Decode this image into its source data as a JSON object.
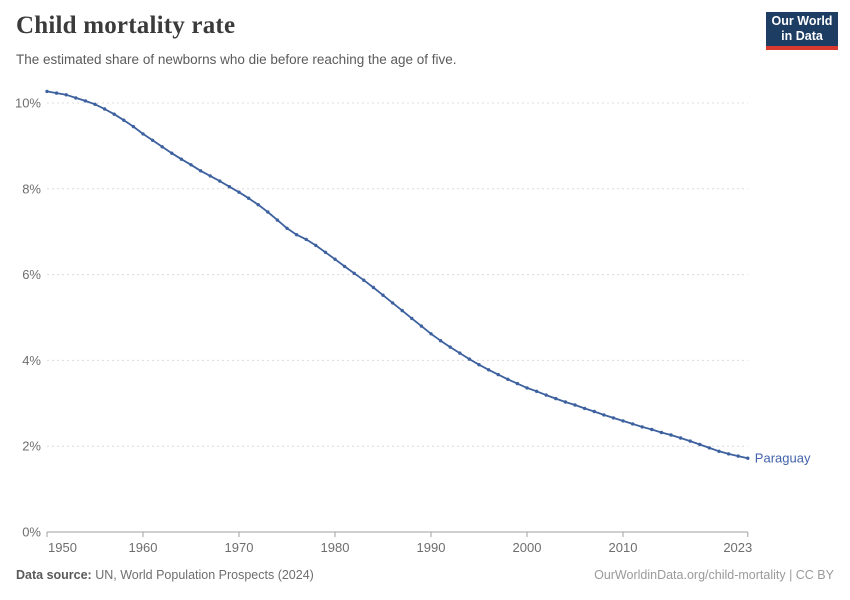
{
  "header": {
    "title": "Child mortality rate",
    "subtitle": "The estimated share of newborns who die before reaching the age of five.",
    "logo": {
      "line1": "Our World",
      "line2": "in Data"
    }
  },
  "chart_data": {
    "type": "line",
    "title": "Child mortality rate",
    "entity": "Paraguay",
    "xlabel": "",
    "ylabel": "",
    "xlim": [
      1950,
      2023
    ],
    "ylim": [
      0,
      10.8
    ],
    "grid": "horizontal-dashed",
    "legend_position": "end-of-line-label",
    "x_ticks": [
      1950,
      1960,
      1970,
      1980,
      1990,
      2000,
      2010,
      2023
    ],
    "y_ticks": [
      {
        "value": 0,
        "label": "0%"
      },
      {
        "value": 2,
        "label": "2%"
      },
      {
        "value": 4,
        "label": "4%"
      },
      {
        "value": 6,
        "label": "6%"
      },
      {
        "value": 8,
        "label": "8%"
      },
      {
        "value": 10,
        "label": "10%"
      }
    ],
    "series": [
      {
        "name": "Paraguay",
        "x": [
          1950,
          1951,
          1952,
          1953,
          1954,
          1955,
          1956,
          1957,
          1958,
          1959,
          1960,
          1961,
          1962,
          1963,
          1964,
          1965,
          1966,
          1967,
          1968,
          1969,
          1970,
          1971,
          1972,
          1973,
          1974,
          1975,
          1976,
          1977,
          1978,
          1979,
          1980,
          1981,
          1982,
          1983,
          1984,
          1985,
          1986,
          1987,
          1988,
          1989,
          1990,
          1991,
          1992,
          1993,
          1994,
          1995,
          1996,
          1997,
          1998,
          1999,
          2000,
          2001,
          2002,
          2003,
          2004,
          2005,
          2006,
          2007,
          2008,
          2009,
          2010,
          2011,
          2012,
          2013,
          2014,
          2015,
          2016,
          2017,
          2018,
          2019,
          2020,
          2021,
          2022,
          2023
        ],
        "values": [
          10.27,
          10.23,
          10.19,
          10.12,
          10.05,
          9.97,
          9.86,
          9.74,
          9.6,
          9.45,
          9.28,
          9.13,
          8.98,
          8.83,
          8.69,
          8.56,
          8.42,
          8.3,
          8.18,
          8.05,
          7.92,
          7.78,
          7.63,
          7.46,
          7.27,
          7.08,
          6.93,
          6.82,
          6.68,
          6.52,
          6.36,
          6.19,
          6.03,
          5.87,
          5.7,
          5.52,
          5.34,
          5.16,
          4.98,
          4.8,
          4.62,
          4.46,
          4.31,
          4.17,
          4.03,
          3.9,
          3.78,
          3.67,
          3.56,
          3.46,
          3.36,
          3.28,
          3.19,
          3.11,
          3.03,
          2.96,
          2.88,
          2.81,
          2.73,
          2.66,
          2.59,
          2.52,
          2.45,
          2.39,
          2.32,
          2.26,
          2.19,
          2.12,
          2.04,
          1.96,
          1.88,
          1.82,
          1.77,
          1.72
        ]
      }
    ]
  },
  "colors": {
    "line": "#3d619f",
    "series_label": "#4262ab",
    "gridline": "#dcdcdc",
    "axis": "#a1a1a1",
    "tick_label": "#6e6e6e",
    "logo_bg": "#1d3d63",
    "logo_red": "#d93a2d"
  },
  "footer": {
    "source_label": "Data source:",
    "source_text": " UN, World Population Prospects (2024)",
    "link_text": "OurWorldinData.org/child-mortality | CC BY"
  }
}
